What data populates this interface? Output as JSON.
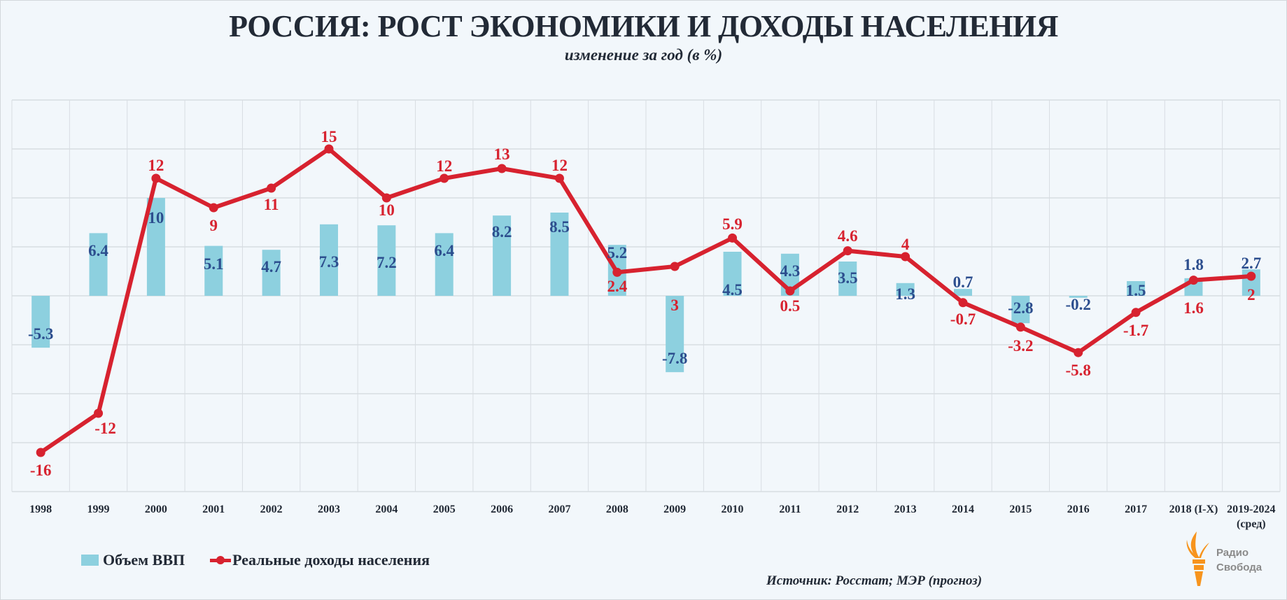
{
  "title": "РОССИЯ: РОСТ ЭКОНОМИКИ И ДОХОДЫ НАСЕЛЕНИЯ",
  "subtitle": "изменение за год (в %)",
  "source": "Источник: Росстат; МЭР (прогноз)",
  "logo": {
    "line1": "Радио",
    "line2": "Свобода"
  },
  "colors": {
    "bar": "#8dd0df",
    "bar_label": "#2c4e8e",
    "line": "#d7222f",
    "grid": "#d8dde2",
    "text": "#222a36"
  },
  "chart_data": {
    "type": "bar+line",
    "title": "РОССИЯ: РОСТ ЭКОНОМИКИ И ДОХОДЫ НАСЕЛЕНИЯ",
    "subtitle": "изменение за год (в %)",
    "xlabel": "",
    "ylabel": "",
    "ylim": [
      -20,
      20
    ],
    "ygrid_step": 5,
    "grid": true,
    "legend_position": "bottom-left",
    "categories": [
      "1998",
      "1999",
      "2000",
      "2001",
      "2002",
      "2003",
      "2004",
      "2005",
      "2006",
      "2007",
      "2008",
      "2009",
      "2010",
      "2011",
      "2012",
      "2013",
      "2014",
      "2015",
      "2016",
      "2017",
      "2018 (I-X)",
      "2019-2024\n(сред)"
    ],
    "series": [
      {
        "name": "Объем ВВП",
        "type": "bar",
        "values": [
          -5.3,
          6.4,
          10,
          5.1,
          4.7,
          7.3,
          7.2,
          6.4,
          8.2,
          8.5,
          5.2,
          -7.8,
          4.5,
          4.3,
          3.5,
          1.3,
          0.7,
          -2.8,
          -0.2,
          1.5,
          1.8,
          2.7
        ]
      },
      {
        "name": "Реальные доходы населения",
        "type": "line",
        "values": [
          -16,
          -12,
          12,
          9,
          11,
          15,
          10,
          12,
          13,
          12,
          2.4,
          3,
          5.9,
          0.5,
          4.6,
          4,
          -0.7,
          -3.2,
          -5.8,
          -1.7,
          1.6,
          2
        ]
      }
    ]
  }
}
